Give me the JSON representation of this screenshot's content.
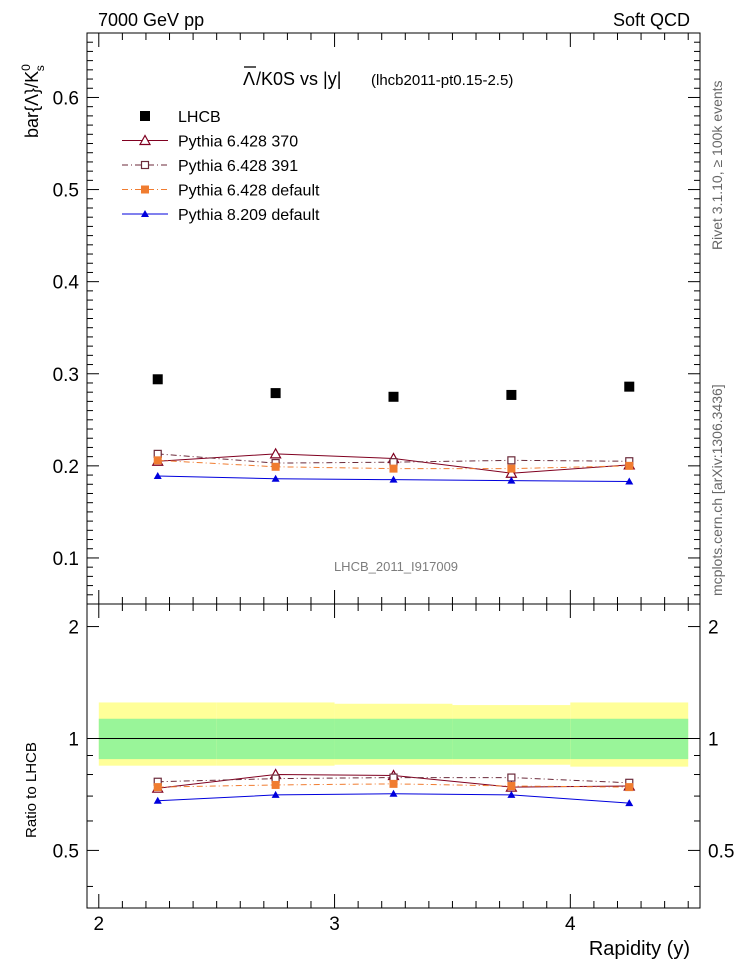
{
  "header": {
    "left": "7000 GeV pp",
    "right": "Soft QCD"
  },
  "title": {
    "main": "Λ/K0S vs |y|",
    "overline_char": "Λ",
    "rest": "/K0S vs |y|",
    "sub": "(lhcb2011-pt0.15-2.5)"
  },
  "side_labels": {
    "rivet": "Rivet 3.1.10, ≥ 100k events",
    "mcplots": "mcplots.cern.ch [arXiv:1306.3436]"
  },
  "watermark": "LHCB_2011_I917009",
  "chart_data": [
    {
      "type": "scatter",
      "ylabel": "bar{Λ}/K",
      "ylabel_sup": "0",
      "ylabel_sub": "s",
      "xlim": [
        1.95,
        4.55
      ],
      "ylim": [
        0.05,
        0.67
      ],
      "yticks": [
        0.1,
        0.2,
        0.3,
        0.4,
        0.5,
        0.6
      ],
      "ytick_labels": [
        "0.1",
        "0.2",
        "0.3",
        "0.4",
        "0.5",
        "0.6"
      ],
      "x": [
        2.25,
        2.75,
        3.25,
        3.75,
        4.25
      ],
      "series": [
        {
          "name": "LHCB",
          "marker": "square-filled",
          "color": "#000000",
          "dash": "none",
          "values": [
            0.294,
            0.279,
            0.275,
            0.277,
            0.286
          ]
        },
        {
          "name": "Pythia 6.428 370",
          "marker": "triangle-open",
          "color": "#800020",
          "dash": "solid",
          "values": [
            0.205,
            0.213,
            0.208,
            0.192,
            0.201
          ]
        },
        {
          "name": "Pythia 6.428 391",
          "marker": "square-open",
          "color": "#6b2a3a",
          "dash": "6,3,1,3",
          "values": [
            0.213,
            0.203,
            0.204,
            0.206,
            0.205
          ]
        },
        {
          "name": "Pythia 6.428 default",
          "marker": "square-filled",
          "color": "#f07c30",
          "dash": "6,3,1,3",
          "values": [
            0.206,
            0.199,
            0.197,
            0.197,
            0.2
          ]
        },
        {
          "name": "Pythia 8.209 default",
          "marker": "triangle-filled",
          "color": "#0000dd",
          "dash": "solid",
          "values": [
            0.189,
            0.186,
            0.185,
            0.184,
            0.183
          ]
        }
      ]
    },
    {
      "type": "line",
      "ylabel": "Ratio to LHCB",
      "xlabel": "Rapidity (y)",
      "xlim": [
        1.95,
        4.55
      ],
      "ylim": [
        0.35,
        2.3
      ],
      "log_y": true,
      "yticks": [
        0.5,
        1,
        2
      ],
      "ytick_labels": [
        "0.5",
        "1",
        "2"
      ],
      "xticks": [
        2,
        3,
        4
      ],
      "xtick_labels": [
        "2",
        "3",
        "4"
      ],
      "x": [
        2.25,
        2.75,
        3.25,
        3.75,
        4.25
      ],
      "bins": [
        [
          2.0,
          2.5
        ],
        [
          2.5,
          3.0
        ],
        [
          3.0,
          3.5
        ],
        [
          3.5,
          4.0
        ],
        [
          4.0,
          4.5
        ]
      ],
      "band_inner": [
        [
          0.88,
          1.13
        ],
        [
          0.88,
          1.13
        ],
        [
          0.88,
          1.13
        ],
        [
          0.88,
          1.13
        ],
        [
          0.88,
          1.13
        ]
      ],
      "band_outer": [
        [
          0.845,
          1.25
        ],
        [
          0.845,
          1.25
        ],
        [
          0.85,
          1.24
        ],
        [
          0.85,
          1.23
        ],
        [
          0.84,
          1.25
        ]
      ],
      "band_inner_color": "#99f599",
      "band_outer_color": "#ffff99",
      "series": [
        {
          "name": "Pythia 6.428 370",
          "marker": "triangle-open",
          "color": "#800020",
          "dash": "solid",
          "values": [
            0.735,
            0.8,
            0.795,
            0.74,
            0.745
          ]
        },
        {
          "name": "Pythia 6.428 391",
          "marker": "square-open",
          "color": "#6b2a3a",
          "dash": "6,3,1,3",
          "values": [
            0.765,
            0.78,
            0.785,
            0.785,
            0.76
          ]
        },
        {
          "name": "Pythia 6.428 default",
          "marker": "square-filled",
          "color": "#f07c30",
          "dash": "6,3,1,3",
          "values": [
            0.74,
            0.75,
            0.755,
            0.745,
            0.74
          ]
        },
        {
          "name": "Pythia 8.209 default",
          "marker": "triangle-filled",
          "color": "#0000dd",
          "dash": "solid",
          "values": [
            0.68,
            0.705,
            0.71,
            0.705,
            0.67
          ]
        }
      ]
    }
  ]
}
